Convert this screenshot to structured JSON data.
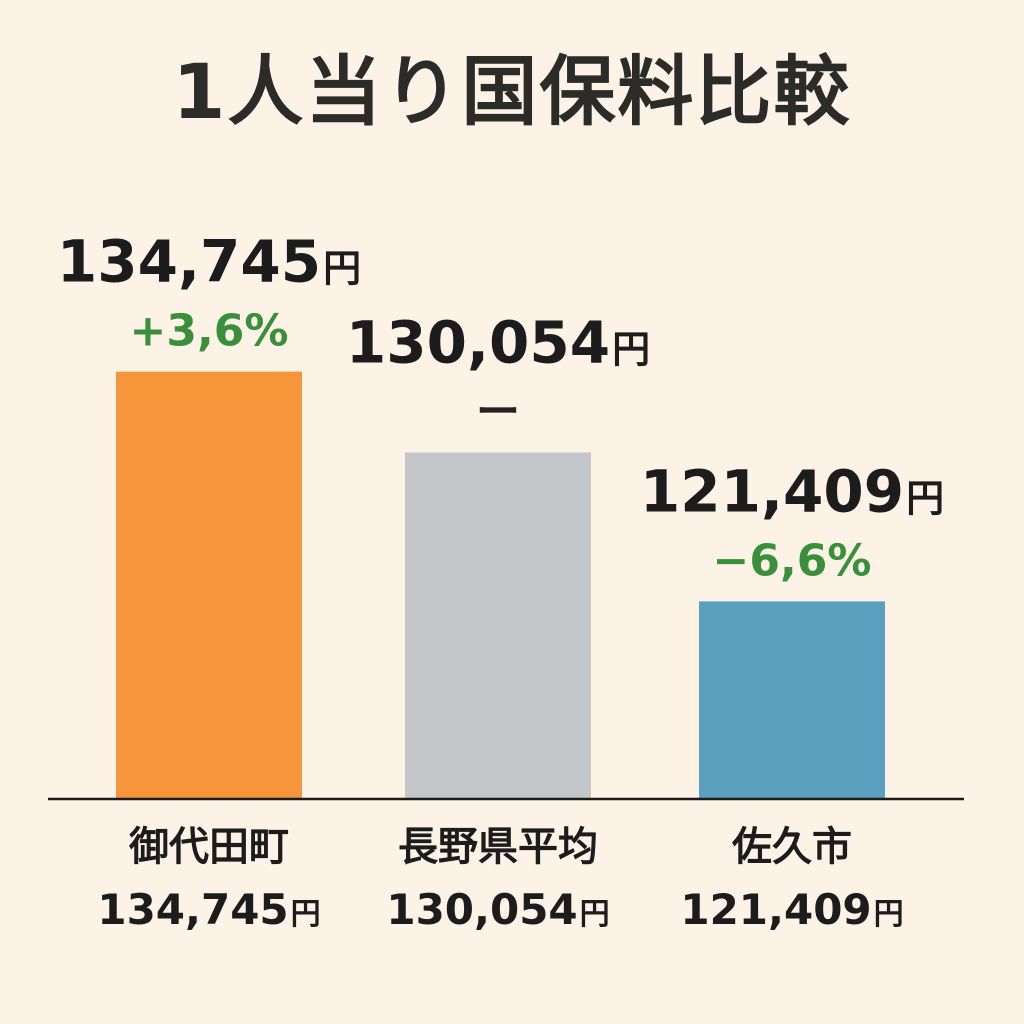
{
  "chart_data": {
    "type": "bar",
    "title": "1人当り国保料比較",
    "categories": [
      "御代田町",
      "長野県平均",
      "佐久市"
    ],
    "values": [
      134745,
      130054,
      121409
    ],
    "value_labels": [
      "134,745",
      "130,054",
      "121,409"
    ],
    "unit": "円",
    "changes": [
      "+3,6%",
      "ー",
      "−6,6%"
    ],
    "category_value_labels": [
      "134,745",
      "130,054",
      "121,409"
    ],
    "colors": [
      "#f7953a",
      "#c4c7c9",
      "#5b9fbf"
    ],
    "change_colors": [
      "#3a8f3a",
      "#222222",
      "#3a8f3a"
    ],
    "xlabel": "",
    "ylabel": "",
    "ylim": [
      110000,
      136000
    ],
    "grid": false,
    "legend": "none"
  }
}
